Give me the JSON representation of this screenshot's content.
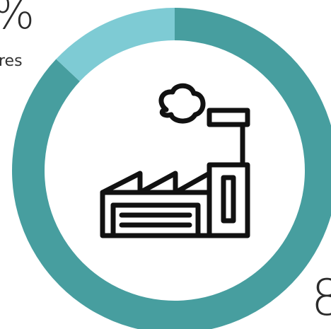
{
  "chart_data": {
    "type": "pie",
    "variant": "donut",
    "slices": [
      {
        "value": 87,
        "color": "#479e9f"
      },
      {
        "value": 13,
        "color": "#7ecbd4"
      }
    ],
    "labels": {
      "top_pct_partial": "%",
      "top_label_partial": "res",
      "bottom_pct_partial": "8"
    },
    "center_icon": "factory-icon"
  }
}
